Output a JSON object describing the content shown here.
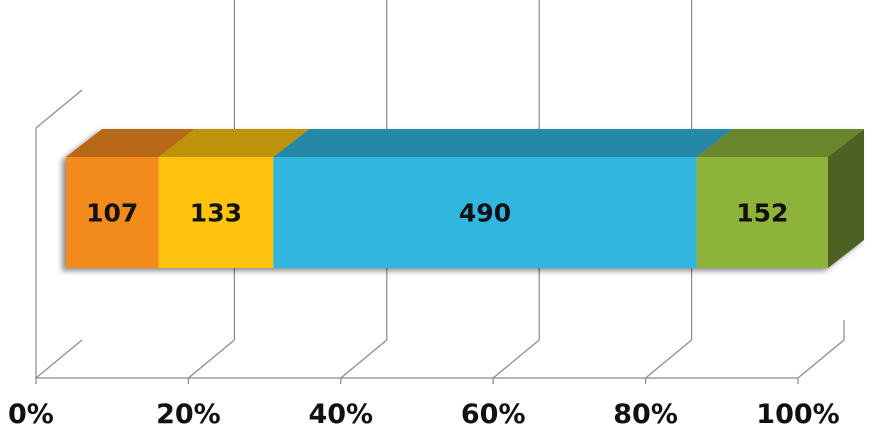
{
  "chart_data": {
    "type": "bar",
    "orientation": "horizontal",
    "stacked": "100%",
    "three_d": true,
    "categories": [
      ""
    ],
    "series": [
      {
        "values": [
          107
        ],
        "color": "#F28A1E"
      },
      {
        "values": [
          133
        ],
        "color": "#FFC20A"
      },
      {
        "values": [
          490
        ],
        "color": "#33B5DE"
      },
      {
        "values": [
          152
        ],
        "color": "#8DB33A"
      }
    ],
    "data_labels": [
      "107",
      "133",
      "490",
      "152"
    ],
    "x_ticks": [
      "0%",
      "20%",
      "40%",
      "60%",
      "80%",
      "100%"
    ],
    "xlim": [
      0,
      100
    ],
    "grid": true,
    "legend": "none"
  }
}
